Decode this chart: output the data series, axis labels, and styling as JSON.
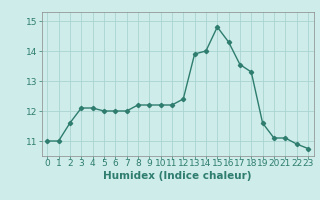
{
  "x": [
    0,
    1,
    2,
    3,
    4,
    5,
    6,
    7,
    8,
    9,
    10,
    11,
    12,
    13,
    14,
    15,
    16,
    17,
    18,
    19,
    20,
    21,
    22,
    23
  ],
  "y": [
    11.0,
    11.0,
    11.6,
    12.1,
    12.1,
    12.0,
    12.0,
    12.0,
    12.2,
    12.2,
    12.2,
    12.2,
    12.4,
    13.9,
    14.0,
    14.8,
    14.3,
    13.55,
    13.3,
    11.6,
    11.1,
    11.1,
    10.9,
    10.75
  ],
  "line_color": "#2e7d6e",
  "marker": "D",
  "marker_size": 2.2,
  "bg_color": "#ceecea",
  "grid_color": "#aad4d0",
  "xlabel": "Humidex (Indice chaleur)",
  "ylim": [
    10.5,
    15.3
  ],
  "yticks": [
    11,
    12,
    13,
    14,
    15
  ],
  "xticks": [
    0,
    1,
    2,
    3,
    4,
    5,
    6,
    7,
    8,
    9,
    10,
    11,
    12,
    13,
    14,
    15,
    16,
    17,
    18,
    19,
    20,
    21,
    22,
    23
  ],
  "xlabel_fontsize": 7.5,
  "tick_fontsize": 6.5,
  "line_width": 1.0
}
